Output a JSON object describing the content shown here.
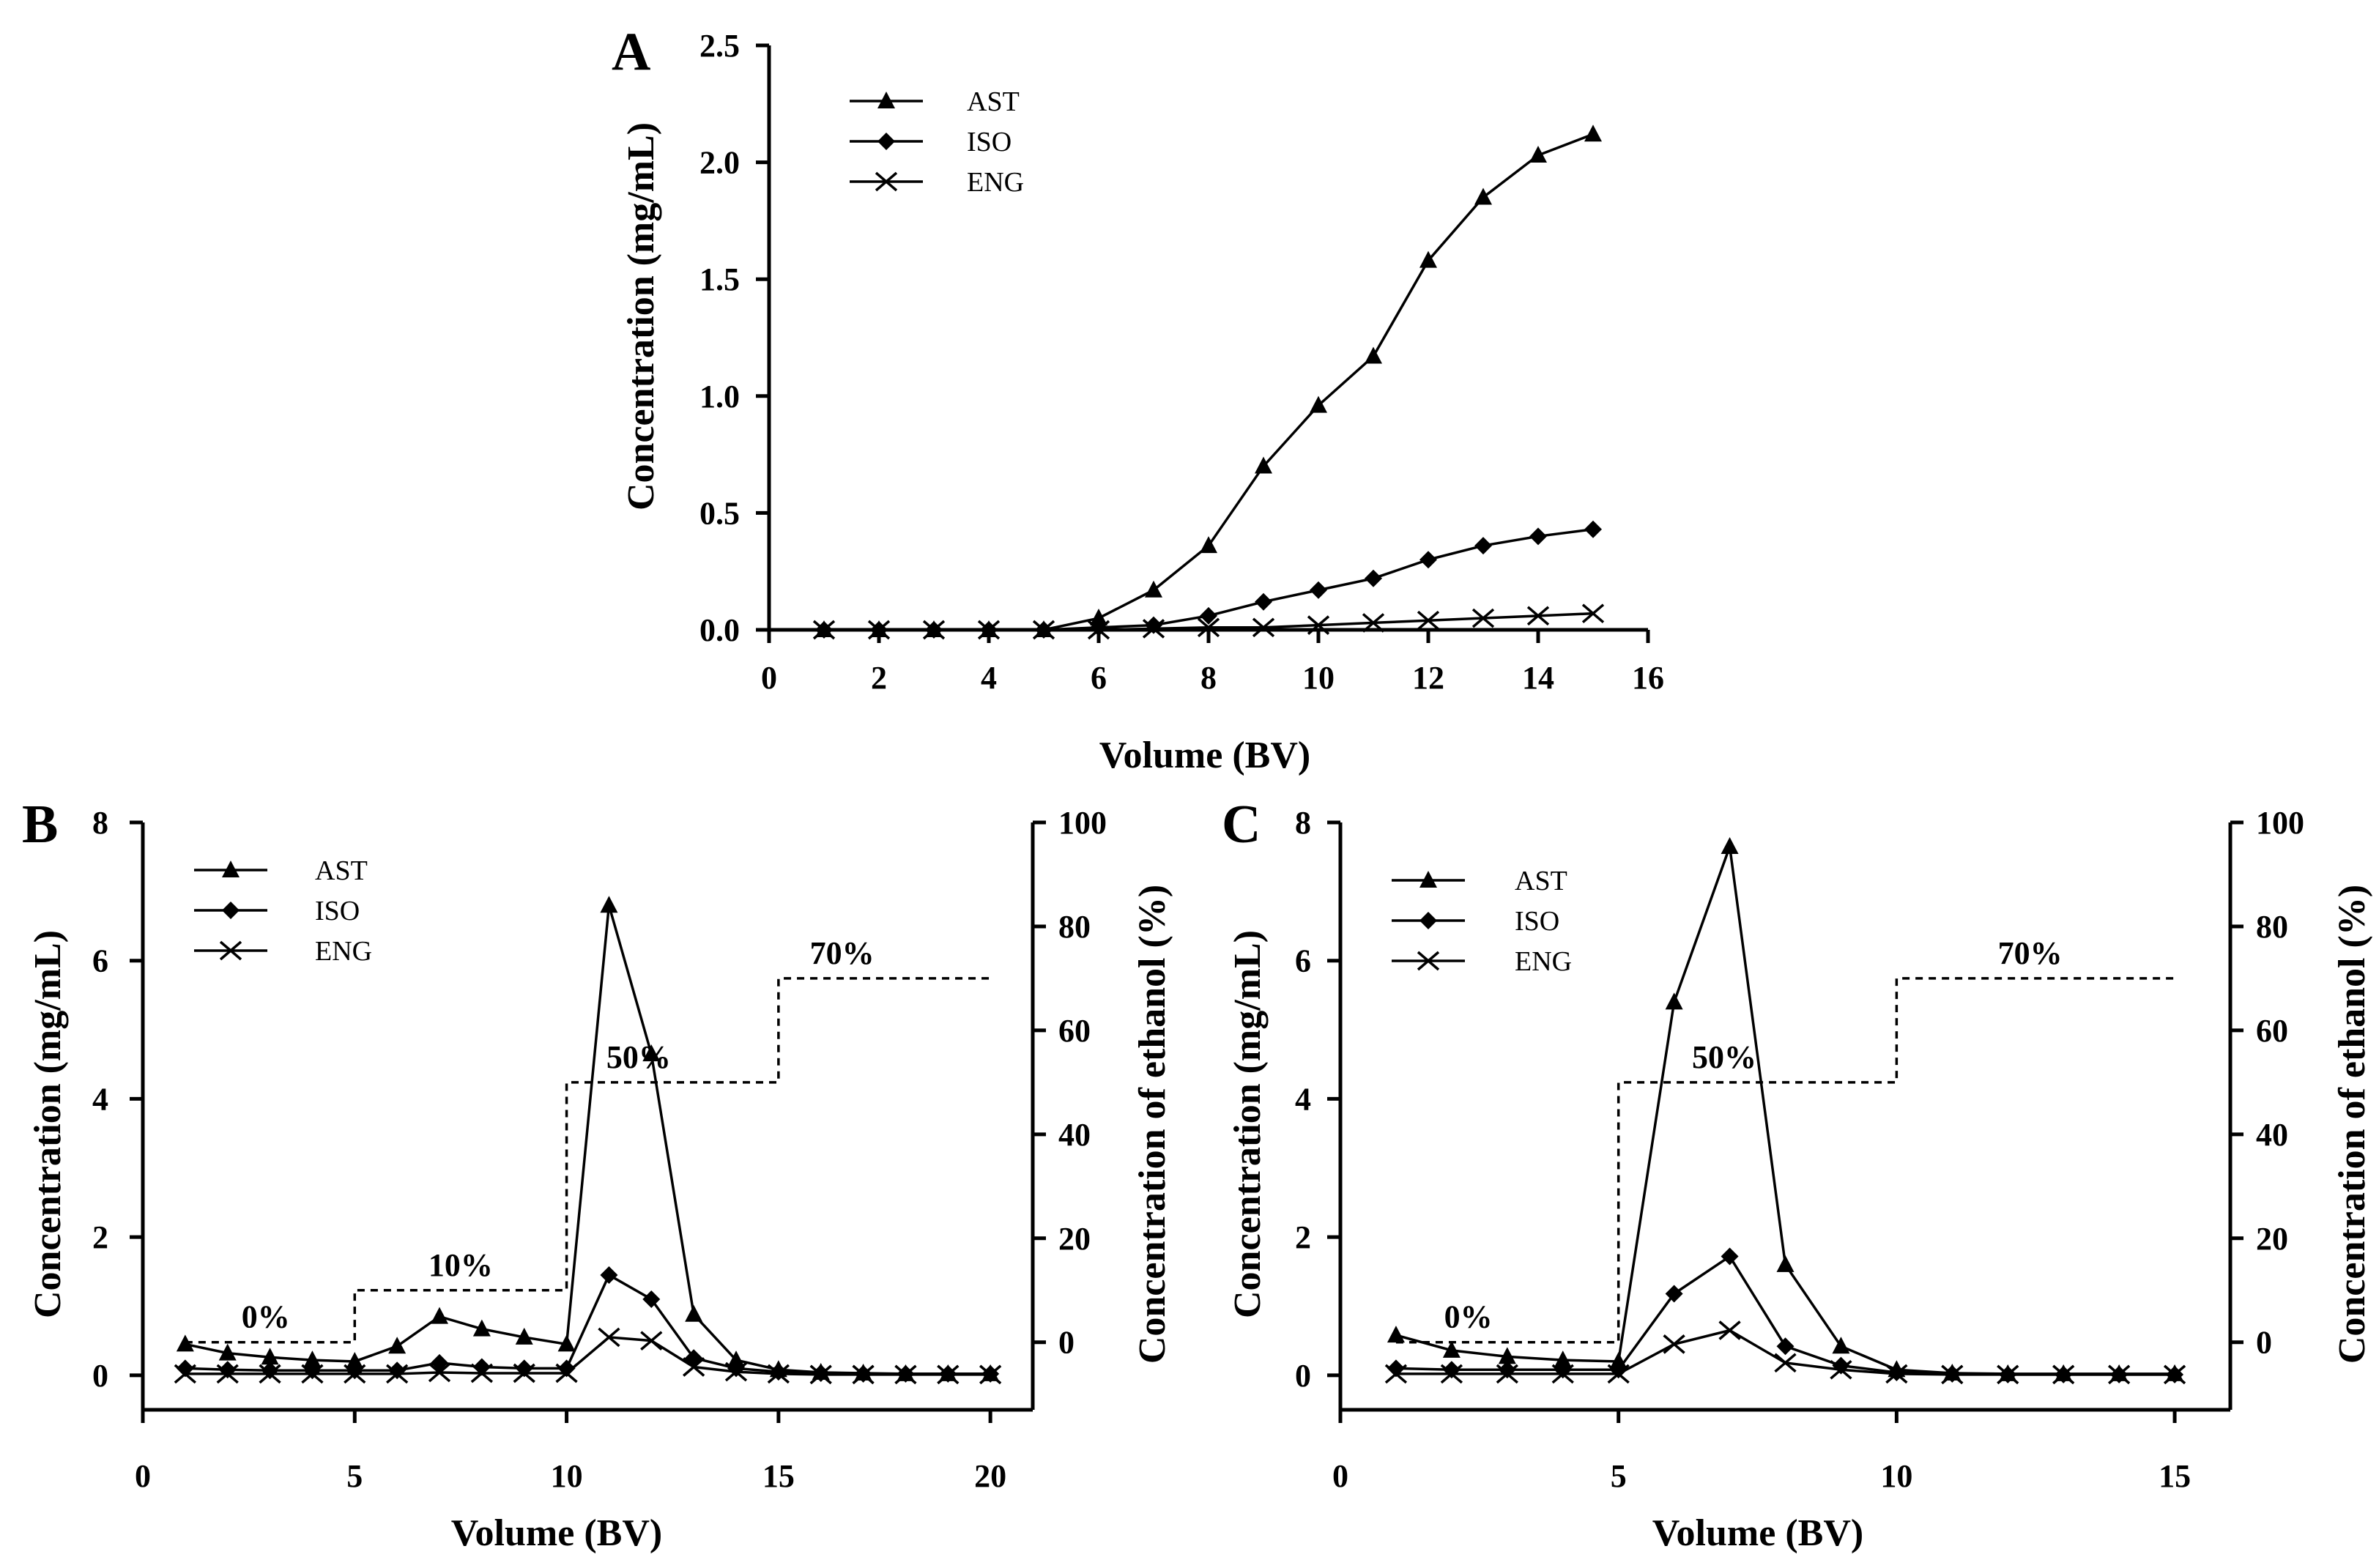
{
  "chart_data": [
    {
      "panel": "A",
      "type": "line",
      "xlabel": "Volume (BV)",
      "ylabel": "Concentration (mg/mL)",
      "xlim": [
        0,
        16
      ],
      "ylim": [
        0,
        2.5
      ],
      "xticks": [
        "0",
        "2",
        "4",
        "6",
        "8",
        "10",
        "12",
        "14",
        "16"
      ],
      "yticks": [
        "0.0",
        "0.5",
        "1.0",
        "1.5",
        "2.0",
        "2.5"
      ],
      "legend_position": "top-left",
      "x": [
        1,
        2,
        3,
        4,
        5,
        6,
        7,
        8,
        9,
        10,
        11,
        12,
        13,
        14,
        15
      ],
      "series": [
        {
          "name": "AST",
          "marker": "triangle",
          "values": [
            0,
            0,
            0,
            0,
            0,
            0.05,
            0.17,
            0.36,
            0.7,
            0.96,
            1.17,
            1.58,
            1.85,
            2.03,
            2.12
          ]
        },
        {
          "name": "ISO",
          "marker": "diamond",
          "values": [
            0,
            0,
            0,
            0,
            0,
            0.01,
            0.02,
            0.06,
            0.12,
            0.17,
            0.22,
            0.3,
            0.36,
            0.4,
            0.43
          ]
        },
        {
          "name": "ENG",
          "marker": "x",
          "values": [
            0,
            0,
            0,
            0,
            0,
            0,
            0.005,
            0.01,
            0.01,
            0.02,
            0.03,
            0.04,
            0.05,
            0.06,
            0.07
          ]
        }
      ]
    },
    {
      "panel": "B",
      "type": "line",
      "xlabel": "Volume (BV)",
      "ylabel": "Concentration (mg/mL)",
      "y2label": "Concentration of ethanol (%)",
      "xlim": [
        0,
        21
      ],
      "ylim": [
        -0.5,
        8
      ],
      "y2lim": [
        -13,
        100
      ],
      "xticks": [
        "0",
        "5",
        "10",
        "15",
        "20"
      ],
      "yticks": [
        "0",
        "2",
        "4",
        "6",
        "8"
      ],
      "y2ticks": [
        "0",
        "20",
        "40",
        "60",
        "80",
        "100"
      ],
      "legend_position": "top-left",
      "x": [
        1,
        2,
        3,
        4,
        5,
        6,
        7,
        8,
        9,
        10,
        11,
        12,
        13,
        14,
        15,
        16,
        17,
        18,
        19,
        20
      ],
      "series": [
        {
          "name": "AST",
          "marker": "triangle",
          "values": [
            0.45,
            0.32,
            0.26,
            0.22,
            0.2,
            0.42,
            0.85,
            0.67,
            0.55,
            0.45,
            6.8,
            4.65,
            0.88,
            0.22,
            0.08,
            0.04,
            0.03,
            0.02,
            0.02,
            0.02
          ]
        },
        {
          "name": "ISO",
          "marker": "diamond",
          "values": [
            0.1,
            0.08,
            0.07,
            0.07,
            0.07,
            0.07,
            0.18,
            0.12,
            0.1,
            0.1,
            1.45,
            1.1,
            0.25,
            0.1,
            0.05,
            0.03,
            0.02,
            0.02,
            0.02,
            0.02
          ]
        },
        {
          "name": "ENG",
          "marker": "x",
          "values": [
            0.02,
            0.02,
            0.02,
            0.02,
            0.02,
            0.02,
            0.04,
            0.03,
            0.03,
            0.03,
            0.55,
            0.5,
            0.12,
            0.05,
            0.02,
            0.01,
            0.01,
            0.01,
            0.01,
            0.01
          ]
        }
      ],
      "ethanol_steps": {
        "x": [
          1,
          5,
          5,
          10,
          10,
          15,
          15,
          20
        ],
        "y": [
          0,
          0,
          10,
          10,
          50,
          50,
          70,
          70
        ],
        "labels": [
          "0%",
          "10%",
          "50%",
          "70%"
        ]
      }
    },
    {
      "panel": "C",
      "type": "line",
      "xlabel": "Volume (BV)",
      "ylabel": "Concentration (mg/mL)",
      "y2label": "Concentration of ethanol (%)",
      "xlim": [
        0,
        16
      ],
      "ylim": [
        -0.5,
        8
      ],
      "y2lim": [
        -13,
        100
      ],
      "xticks": [
        "0",
        "5",
        "10",
        "15"
      ],
      "yticks": [
        "0",
        "2",
        "4",
        "6",
        "8"
      ],
      "y2ticks": [
        "0",
        "20",
        "40",
        "60",
        "80",
        "100"
      ],
      "legend_position": "top-left",
      "x": [
        1,
        2,
        3,
        4,
        5,
        6,
        7,
        8,
        9,
        10,
        11,
        12,
        13,
        14,
        15
      ],
      "series": [
        {
          "name": "AST",
          "marker": "triangle",
          "values": [
            0.58,
            0.36,
            0.27,
            0.22,
            0.2,
            5.4,
            7.65,
            1.6,
            0.42,
            0.08,
            0.03,
            0.02,
            0.02,
            0.02,
            0.02
          ]
        },
        {
          "name": "ISO",
          "marker": "diamond",
          "values": [
            0.1,
            0.08,
            0.08,
            0.08,
            0.08,
            1.18,
            1.72,
            0.42,
            0.14,
            0.04,
            0.02,
            0.01,
            0.01,
            0.01,
            0.01
          ]
        },
        {
          "name": "ENG",
          "marker": "x",
          "values": [
            0.02,
            0.02,
            0.02,
            0.02,
            0.02,
            0.45,
            0.65,
            0.18,
            0.08,
            0.02,
            0.01,
            0.01,
            0.01,
            0.01,
            0.01
          ]
        }
      ],
      "ethanol_steps": {
        "x": [
          1,
          5,
          5,
          10,
          10,
          15
        ],
        "y": [
          0,
          0,
          50,
          50,
          70,
          70
        ],
        "labels": [
          "0%",
          "50%",
          "70%"
        ]
      }
    }
  ]
}
